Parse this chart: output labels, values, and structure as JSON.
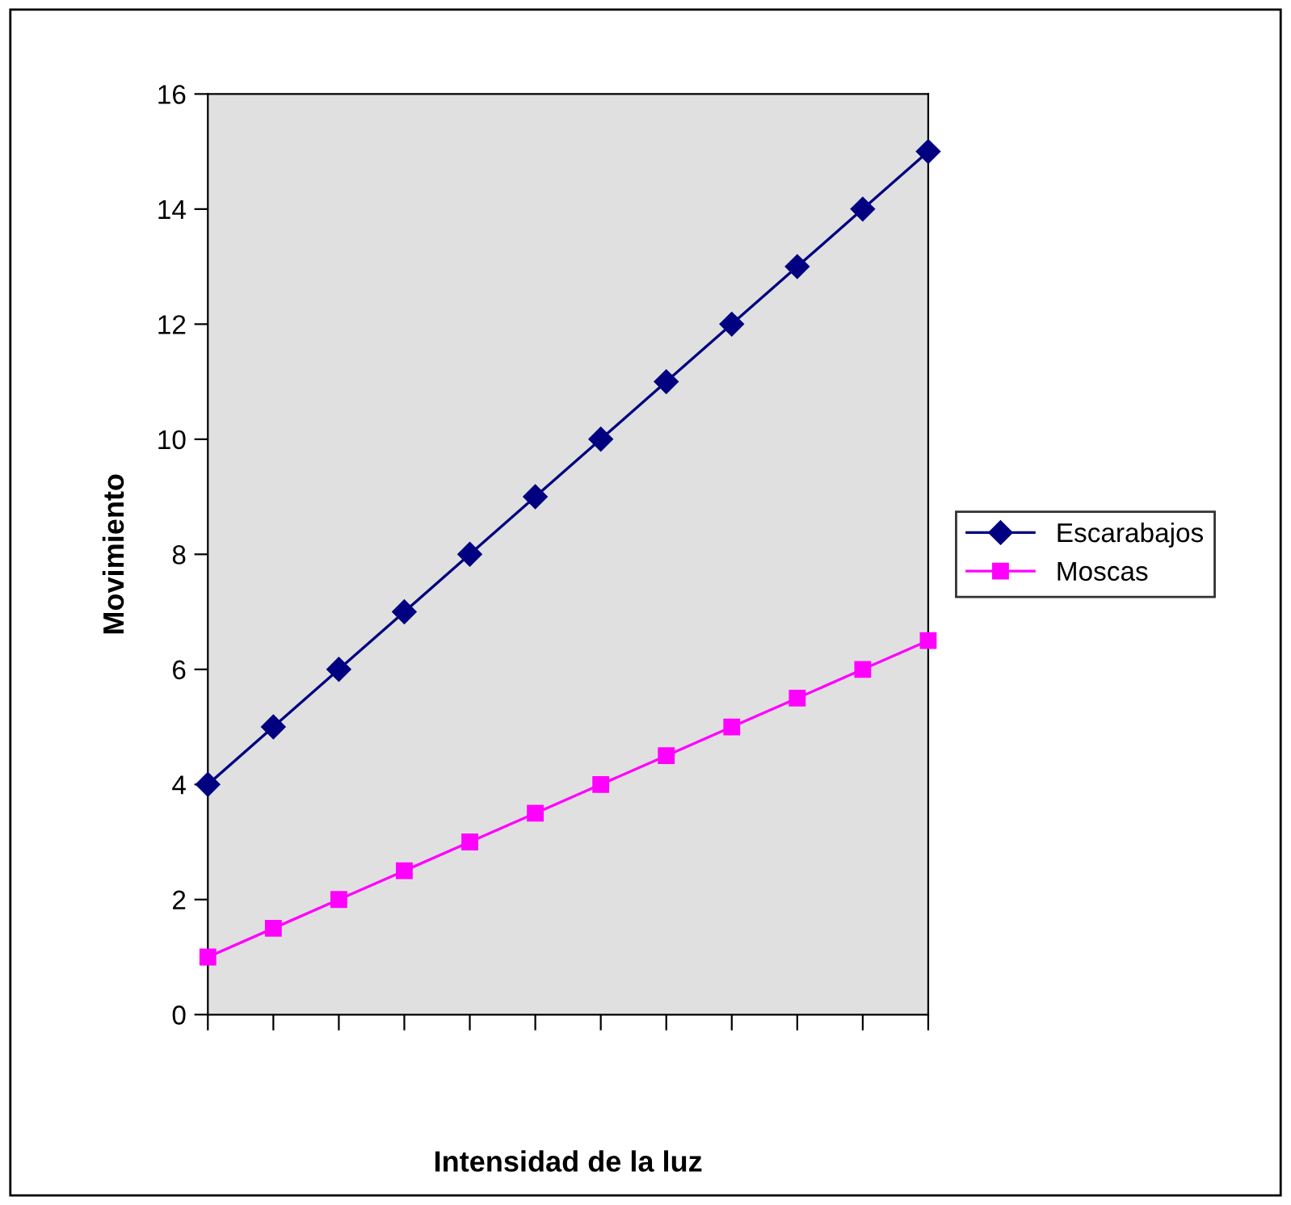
{
  "chart_data": {
    "type": "line",
    "xlabel": "Intensidad de la luz",
    "ylabel": "Movimiento",
    "categories": [
      null,
      null,
      null,
      null,
      null,
      null,
      null,
      null,
      null,
      null,
      null,
      null
    ],
    "series": [
      {
        "name": "Escarabajos",
        "color": "#000080",
        "marker": "diamond",
        "values": [
          4,
          5,
          6,
          7,
          8,
          9,
          10,
          11,
          12,
          13,
          14,
          15
        ]
      },
      {
        "name": "Moscas",
        "color": "#ff00ff",
        "marker": "square",
        "values": [
          1,
          1.5,
          2,
          2.5,
          3,
          3.5,
          4,
          4.5,
          5,
          5.5,
          6,
          6.5
        ]
      }
    ],
    "ylim": [
      0,
      16
    ],
    "yticks": [
      0,
      2,
      4,
      6,
      8,
      10,
      12,
      14,
      16
    ],
    "grid": false,
    "legend": "right",
    "line_style": "solid"
  }
}
